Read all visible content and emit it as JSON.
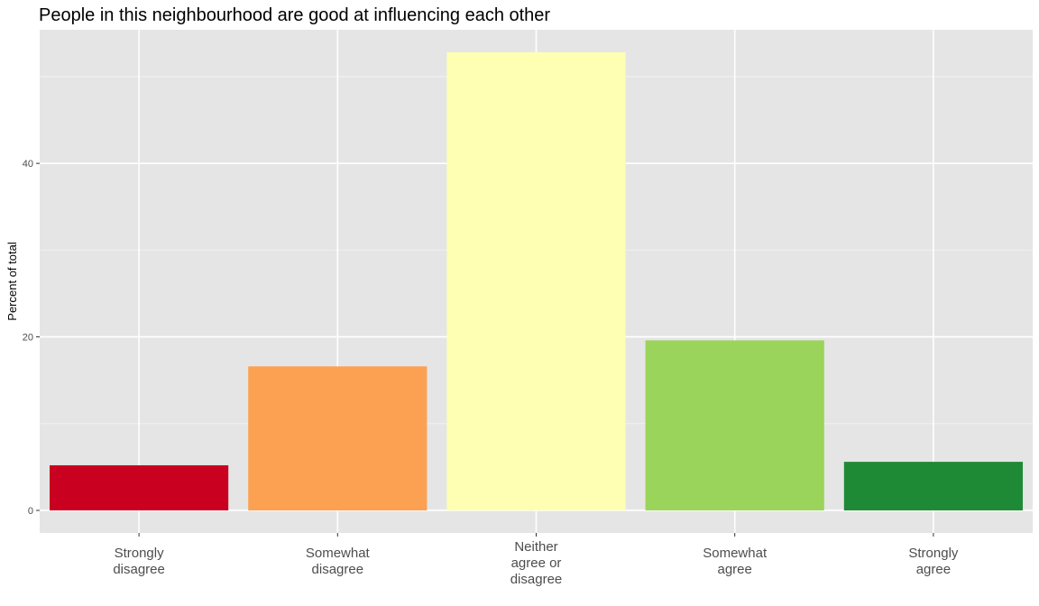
{
  "chart_data": {
    "type": "bar",
    "title": "People in this neighbourhood are good at influencing each other",
    "xlabel": "",
    "ylabel": "Percent of total",
    "categories": [
      [
        "Strongly",
        "disagree"
      ],
      [
        "Somewhat",
        "disagree"
      ],
      [
        "Neither",
        "agree or",
        "disagree"
      ],
      [
        "Somewhat",
        "agree"
      ],
      [
        "Strongly",
        "agree"
      ]
    ],
    "values": [
      5.2,
      16.6,
      52.8,
      19.6,
      5.6
    ],
    "colors": [
      "#ca0020",
      "#fca152",
      "#ffffb3",
      "#9ad45a",
      "#1e8a35"
    ],
    "ylim": [
      -2.6,
      55.4
    ],
    "yticks": [
      0,
      20,
      40
    ],
    "y_minor_gridlines": [
      10,
      30,
      50
    ],
    "grid": true,
    "panel_background": "#e5e5e5",
    "legend": "none"
  }
}
